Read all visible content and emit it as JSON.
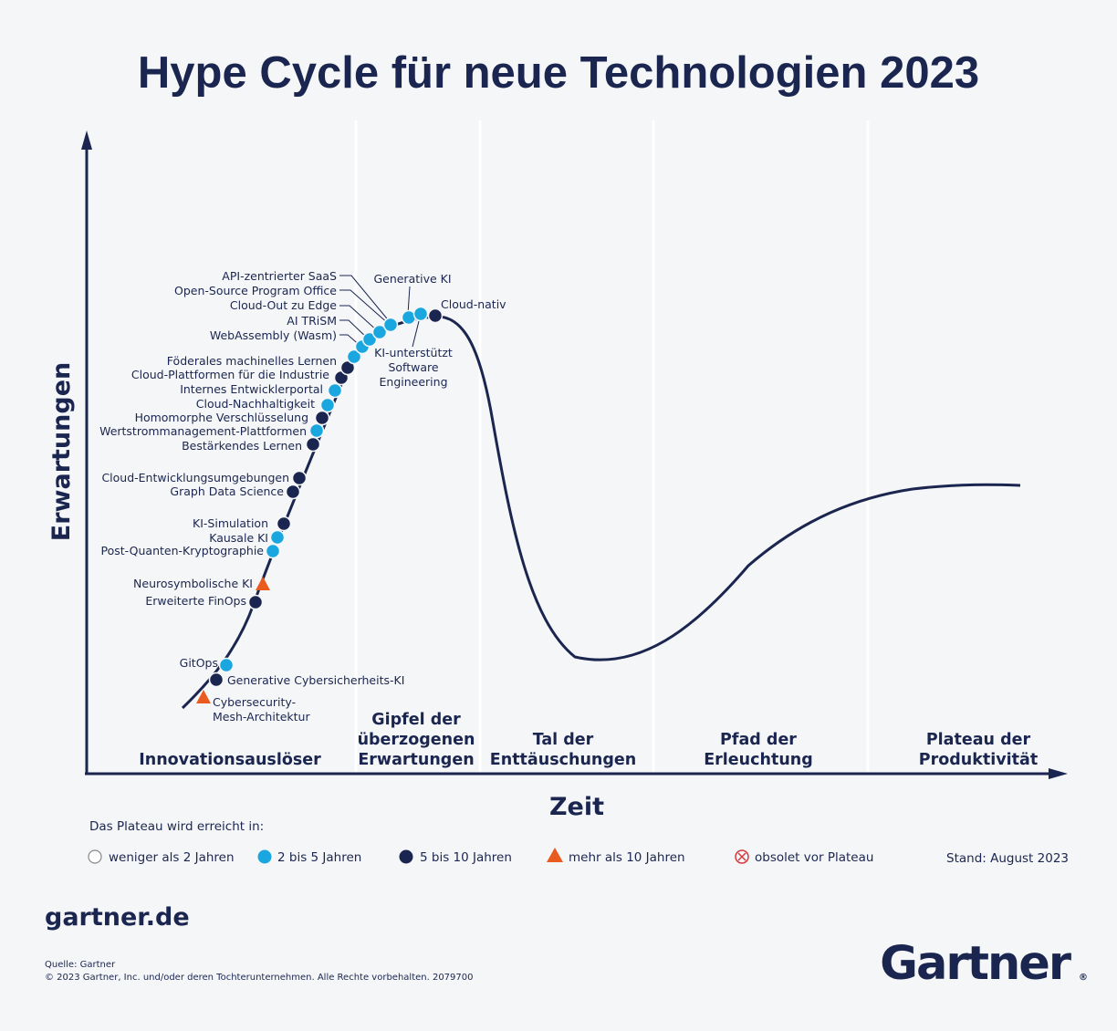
{
  "title": "Hype Cycle für neue Technologien 2023",
  "colors": {
    "navy": "#1b2650",
    "light_blue": "#1aa7e0",
    "orange": "#ea5b1f",
    "red": "#d6393e",
    "bg": "#f5f6f7"
  },
  "chart_data": {
    "type": "scatter",
    "xlabel": "Zeit",
    "ylabel": "Erwartungen",
    "phases": [
      {
        "lines": [
          "Innovationsauslöser"
        ]
      },
      {
        "lines": [
          "Gipfel der",
          "überzogenen",
          "Erwartungen"
        ]
      },
      {
        "lines": [
          "Tal der",
          "Enttäuschungen"
        ]
      },
      {
        "lines": [
          "Pfad der",
          "Erleuchtung"
        ]
      },
      {
        "lines": [
          "Plateau der",
          "Produktivität"
        ]
      }
    ],
    "categories": {
      "lt2": "weniger als 2 Jahren",
      "2to5": "2 bis 5 Jahren",
      "5to10": "5 bis 10 Jahren",
      "gt10": "mehr als 10 Jahren",
      "obsolete": "obsolet vor Plateau"
    },
    "technologies": [
      {
        "name": "Cybersecurity-Mesh-Architektur",
        "lines": [
          "Cybersecurity-",
          "Mesh-Architektur"
        ],
        "category": "gt10"
      },
      {
        "name": "Generative Cybersicherheits-KI",
        "lines": [
          "Generative Cybersicherheits-KI"
        ],
        "category": "5to10"
      },
      {
        "name": "GitOps",
        "lines": [
          "GitOps"
        ],
        "category": "2to5"
      },
      {
        "name": "Erweiterte FinOps",
        "lines": [
          "Erweiterte FinOps"
        ],
        "category": "5to10"
      },
      {
        "name": "Neurosymbolische KI",
        "lines": [
          "Neurosymbolische KI"
        ],
        "category": "gt10"
      },
      {
        "name": "Post-Quanten-Kryptographie",
        "lines": [
          "Post-Quanten-Kryptographie"
        ],
        "category": "2to5"
      },
      {
        "name": "Kausale KI",
        "lines": [
          "Kausale KI"
        ],
        "category": "2to5"
      },
      {
        "name": "KI-Simulation",
        "lines": [
          "KI-Simulation"
        ],
        "category": "5to10"
      },
      {
        "name": "Graph Data Science",
        "lines": [
          "Graph Data Science"
        ],
        "category": "5to10"
      },
      {
        "name": "Cloud-Entwicklungsumgebungen",
        "lines": [
          "Cloud-Entwicklungsumgebungen"
        ],
        "category": "5to10"
      },
      {
        "name": "Bestärkendes Lernen",
        "lines": [
          "Bestärkendes Lernen"
        ],
        "category": "5to10"
      },
      {
        "name": "Wertstrommanagement-Plattformen",
        "lines": [
          "Wertstrommanagement-Plattformen"
        ],
        "category": "2to5"
      },
      {
        "name": "Homomorphe Verschlüsselung",
        "lines": [
          "Homomorphe Verschlüsselung"
        ],
        "category": "5to10"
      },
      {
        "name": "Cloud-Nachhaltigkeit",
        "lines": [
          "Cloud-Nachhaltigkeit"
        ],
        "category": "2to5"
      },
      {
        "name": "Internes Entwicklerportal",
        "lines": [
          "Internes Entwicklerportal"
        ],
        "category": "2to5"
      },
      {
        "name": "Cloud-Plattformen für die Industrie",
        "lines": [
          "Cloud-Plattformen für die Industrie"
        ],
        "category": "5to10"
      },
      {
        "name": "Föderales machinelles Lernen",
        "lines": [
          "Föderales machinelles Lernen"
        ],
        "category": "5to10"
      },
      {
        "name": "WebAssembly (Wasm)",
        "lines": [
          "WebAssembly (Wasm)"
        ],
        "category": "2to5"
      },
      {
        "name": "AI TRiSM",
        "lines": [
          "AI TRiSM"
        ],
        "category": "2to5"
      },
      {
        "name": "Cloud-Out zu Edge",
        "lines": [
          "Cloud-Out zu Edge"
        ],
        "category": "2to5"
      },
      {
        "name": "Open-Source Program Office",
        "lines": [
          "Open-Source Program Office"
        ],
        "category": "2to5"
      },
      {
        "name": "API-zentrierter SaaS",
        "lines": [
          "API-zentrierter SaaS"
        ],
        "category": "2to5"
      },
      {
        "name": "KI-unterstützt Software Engineering",
        "lines": [
          "KI-unterstützt",
          "Software",
          "Engineering"
        ],
        "category": "2to5"
      },
      {
        "name": "Generative KI",
        "lines": [
          "Generative KI"
        ],
        "category": "2to5"
      },
      {
        "name": "Cloud-nativ",
        "lines": [
          "Cloud-nativ"
        ],
        "category": "5to10"
      }
    ]
  },
  "legend": {
    "heading": "Das Plateau wird erreicht in:",
    "stand": "Stand: August 2023"
  },
  "footer": {
    "site": "gartner.de",
    "source": "Quelle: Gartner",
    "copyright": "© 2023 Gartner, Inc. und/oder deren Tochterunternehmen. Alle Rechte vorbehalten. 2079700",
    "logo": "Gartner"
  }
}
